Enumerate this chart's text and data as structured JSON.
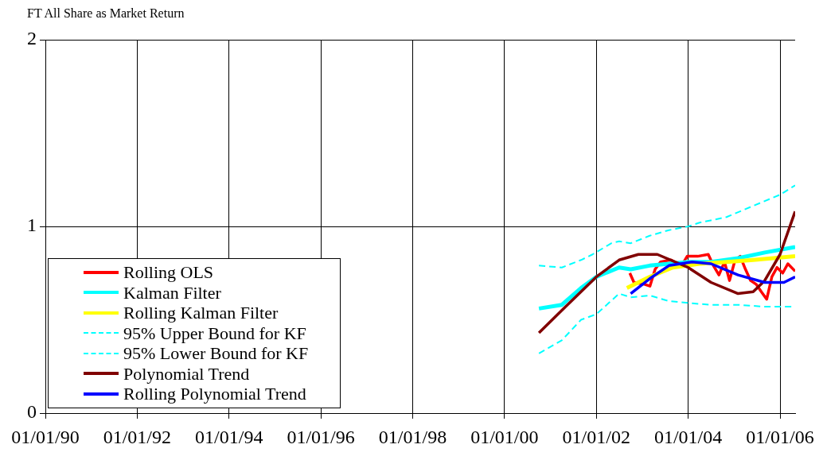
{
  "chart_data": {
    "type": "line",
    "title": "FT All Share as Market Return",
    "xlim": [
      "1990-01-01",
      "2006-05-01"
    ],
    "xticks": [
      {
        "value": "1990-01-01",
        "label": "01/01/90"
      },
      {
        "value": "1992-01-01",
        "label": "01/01/92"
      },
      {
        "value": "1994-01-01",
        "label": "01/01/94"
      },
      {
        "value": "1996-01-01",
        "label": "01/01/96"
      },
      {
        "value": "1998-01-01",
        "label": "01/01/98"
      },
      {
        "value": "2000-01-01",
        "label": "01/01/00"
      },
      {
        "value": "2002-01-01",
        "label": "01/01/02"
      },
      {
        "value": "2004-01-01",
        "label": "01/01/04"
      },
      {
        "value": "2006-01-01",
        "label": "01/01/06"
      }
    ],
    "ylim": [
      0,
      2
    ],
    "yticks": [
      0,
      1,
      2
    ],
    "grid": true,
    "legend": "bottom left",
    "marker": "none",
    "series": [
      {
        "name": "Rolling OLS",
        "color": "#ff0000",
        "x": [
          "2002-09-24",
          "2002-10-27",
          "2003-01-19",
          "2003-03-03",
          "2003-04-13",
          "2003-05-26",
          "2003-08-18",
          "2003-11-10",
          "2003-12-24",
          "2004-03-17",
          "2004-06-09",
          "2004-07-20",
          "2004-09-02",
          "2004-10-16",
          "2004-11-25",
          "2005-01-08",
          "2005-02-18",
          "2005-04-01",
          "2005-05-12",
          "2005-06-25",
          "2005-08-05",
          "2005-09-17",
          "2005-10-28",
          "2005-12-08",
          "2006-01-22",
          "2006-03-04",
          "2006-05-01"
        ],
        "values": [
          0.75,
          0.7,
          0.69,
          0.68,
          0.77,
          0.81,
          0.82,
          0.79,
          0.84,
          0.84,
          0.85,
          0.79,
          0.74,
          0.81,
          0.71,
          0.82,
          0.84,
          0.77,
          0.71,
          0.69,
          0.65,
          0.61,
          0.73,
          0.78,
          0.75,
          0.8,
          0.76
        ]
      },
      {
        "name": "Kalman Filter",
        "color": "#00ffff",
        "x": [
          "2000-10",
          "2001-04",
          "2001-09",
          "2002-01",
          "2002-07",
          "2002-10",
          "2003-03",
          "2003-08",
          "2004-01",
          "2004-07",
          "2005-02",
          "2005-09",
          "2006-05"
        ],
        "values": [
          0.56,
          0.58,
          0.67,
          0.73,
          0.78,
          0.77,
          0.79,
          0.8,
          0.81,
          0.81,
          0.83,
          0.86,
          0.89
        ]
      },
      {
        "name": "Rolling Kalman Filter",
        "color": "#ffff00",
        "x": [
          "2002-09",
          "2003-03",
          "2003-09",
          "2004-04",
          "2004-11",
          "2005-06",
          "2006-05"
        ],
        "values": [
          0.67,
          0.73,
          0.78,
          0.8,
          0.81,
          0.82,
          0.84
        ]
      },
      {
        "name": "95% Upper Bound for KF",
        "color": "#00ffff",
        "line_style": "dashed",
        "x": [
          "2000-10",
          "2001-04",
          "2001-09",
          "2001-12",
          "2002-05",
          "2002-07",
          "2002-10",
          "2003-03",
          "2003-08",
          "2004-01",
          "2004-04",
          "2004-11",
          "2005-06",
          "2006-01",
          "2006-05"
        ],
        "values": [
          0.79,
          0.78,
          0.82,
          0.85,
          0.91,
          0.92,
          0.91,
          0.95,
          0.98,
          1.0,
          1.02,
          1.05,
          1.11,
          1.17,
          1.22
        ]
      },
      {
        "name": "95% Lower Bound for KF",
        "color": "#00ffff",
        "line_style": "dashed",
        "x": [
          "2000-10",
          "2001-04",
          "2001-09",
          "2002-01",
          "2002-07",
          "2002-10",
          "2003-03",
          "2003-08",
          "2004-01",
          "2004-07",
          "2005-02",
          "2005-09",
          "2006-05"
        ],
        "values": [
          0.32,
          0.39,
          0.5,
          0.53,
          0.64,
          0.62,
          0.63,
          0.6,
          0.59,
          0.58,
          0.58,
          0.57,
          0.57
        ]
      },
      {
        "name": "Polynomial Trend",
        "color": "#800000",
        "x": [
          "2000-10",
          "2001-05",
          "2002-01",
          "2002-07",
          "2002-12",
          "2003-05",
          "2004-01",
          "2004-07",
          "2005-02",
          "2005-06",
          "2005-09",
          "2006-01",
          "2006-05"
        ],
        "values": [
          0.43,
          0.57,
          0.73,
          0.82,
          0.85,
          0.85,
          0.78,
          0.7,
          0.64,
          0.65,
          0.71,
          0.85,
          1.08
        ]
      },
      {
        "name": "Rolling Polynomial Trend",
        "color": "#0000ff",
        "x": [
          "2002-10",
          "2003-03",
          "2003-08",
          "2004-02",
          "2004-07",
          "2005-02",
          "2005-09",
          "2006-02",
          "2006-05"
        ],
        "values": [
          0.64,
          0.72,
          0.79,
          0.81,
          0.8,
          0.74,
          0.7,
          0.7,
          0.73
        ]
      }
    ]
  }
}
